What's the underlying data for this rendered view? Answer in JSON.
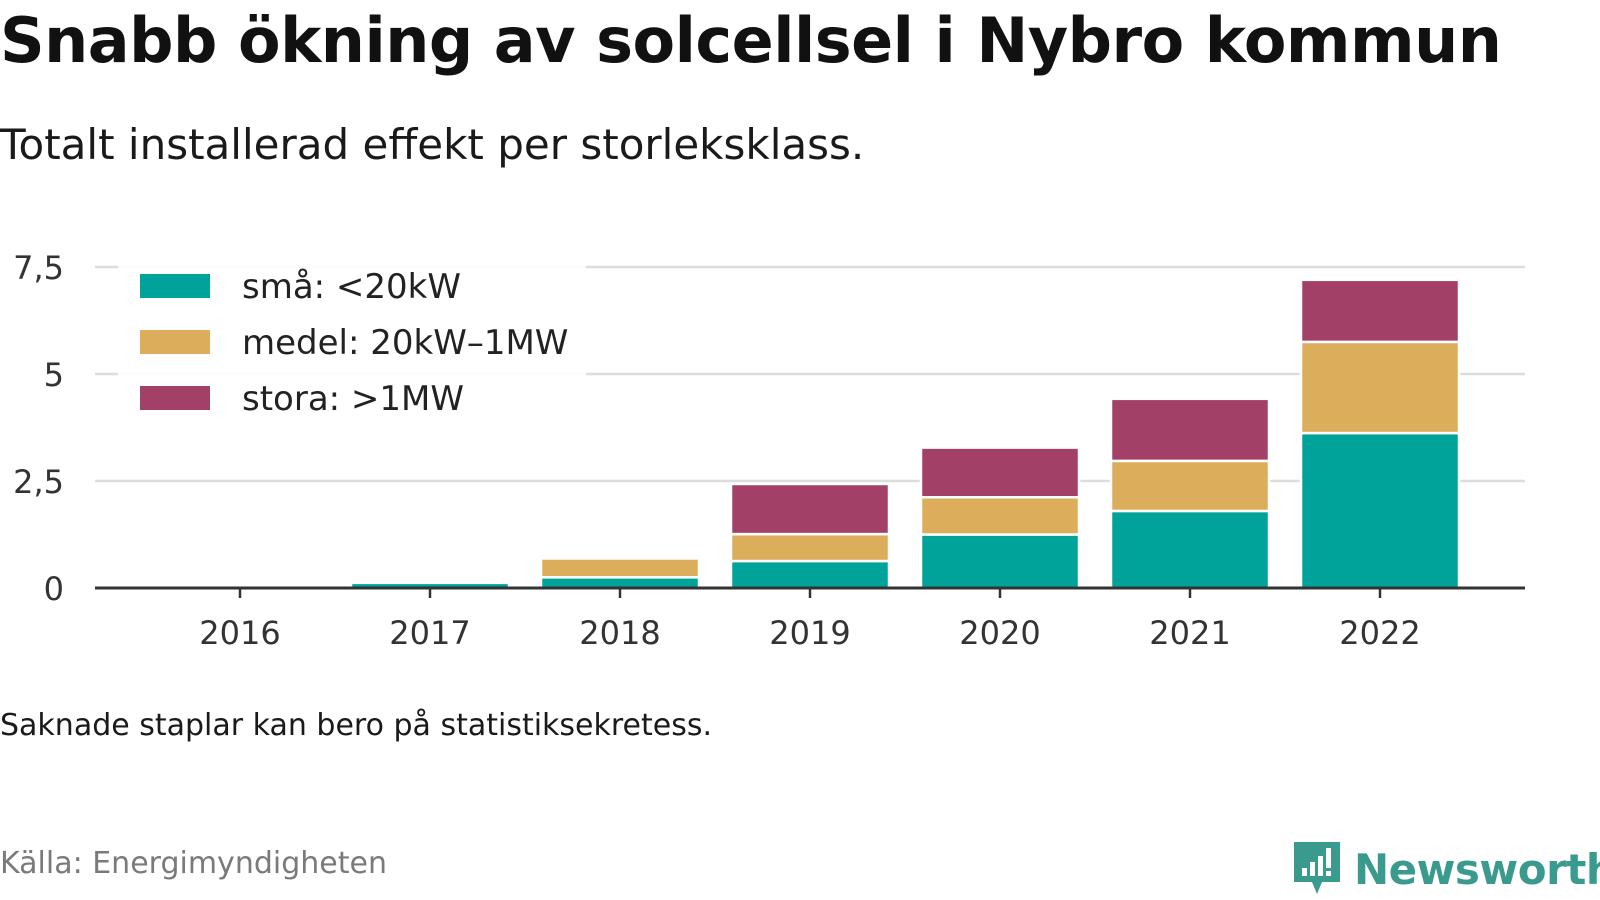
{
  "header": {
    "title": "Snabb ökning av solcellsel i Nybro kommun",
    "subtitle": "Totalt installerad effekt per storleksklass."
  },
  "footer": {
    "note": "Saknade staplar kan bero på statistiksekretess.",
    "source": "Källa: Energimyndigheten",
    "brand": "Newsworthy"
  },
  "colors": {
    "sma": "#00a39a",
    "medel": "#dcad5a",
    "stora": "#a34068",
    "grid": "#dddddd",
    "axis": "#333333",
    "brand": "#3a9a8e"
  },
  "chart_data": {
    "type": "bar",
    "stacked": true,
    "categories": [
      "2016",
      "2017",
      "2018",
      "2019",
      "2020",
      "2021",
      "2022"
    ],
    "series": [
      {
        "name": "små: <20kW",
        "color_key": "sma",
        "values": [
          0,
          0.12,
          0.25,
          0.63,
          1.25,
          1.8,
          3.62
        ]
      },
      {
        "name": "medel: 20kW–1MW",
        "color_key": "medel",
        "values": [
          0,
          0,
          0.44,
          0.63,
          0.87,
          1.17,
          2.13
        ]
      },
      {
        "name": "stora: >1MW",
        "color_key": "stora",
        "values": [
          0,
          0,
          0,
          1.17,
          1.16,
          1.45,
          1.45
        ]
      }
    ],
    "yticks": [
      "0",
      "2,5",
      "5",
      "7,5"
    ],
    "ytick_values": [
      0,
      2.5,
      5,
      7.5
    ],
    "ylim": [
      0,
      7.5
    ],
    "grid": true,
    "legend_position": "top-left"
  }
}
